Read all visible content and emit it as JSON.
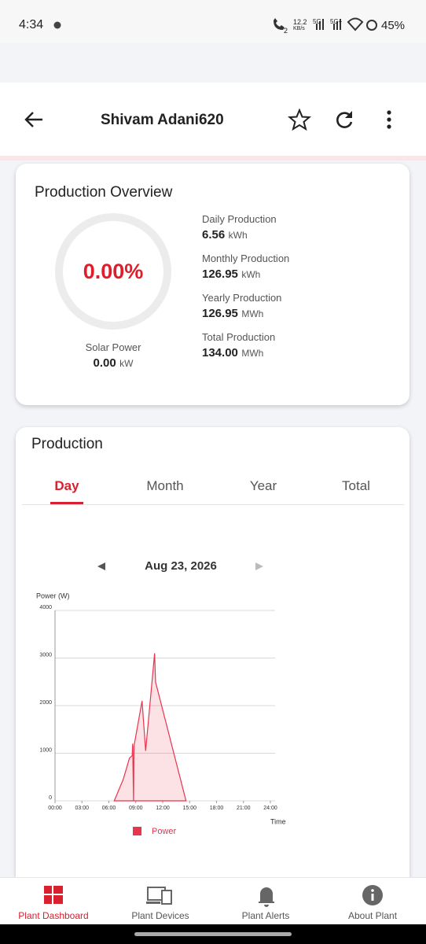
{
  "status_bar": {
    "time": "4:34",
    "call_count": "2",
    "speed": "12.2",
    "speed_unit": "KB/s",
    "network_1": "5G",
    "network_2": "5G+",
    "battery": "45%"
  },
  "header": {
    "title": "Shivam Adani620"
  },
  "overview": {
    "title": "Production Overview",
    "gauge_value": "0.00%",
    "solar_power_label": "Solar Power",
    "solar_power_value": "0.00",
    "solar_power_unit": "kW",
    "stats": [
      {
        "label": "Daily Production",
        "value": "6.56",
        "unit": "kWh"
      },
      {
        "label": "Monthly Production",
        "value": "126.95",
        "unit": "kWh"
      },
      {
        "label": "Yearly Production",
        "value": "126.95",
        "unit": "MWh"
      },
      {
        "label": "Total Production",
        "value": "134.00",
        "unit": "MWh"
      }
    ]
  },
  "production": {
    "title": "Production",
    "tabs": [
      "Day",
      "Month",
      "Year",
      "Total"
    ],
    "date": "Aug 23, 2026"
  },
  "chart_data": {
    "type": "area",
    "y_label": "Power (W)",
    "x_label": "Time",
    "x": [
      6.6,
      7.6,
      8.3,
      8.6,
      8.65,
      8.75,
      8.8,
      9.7,
      10.1,
      11.1,
      11.2,
      14.6
    ],
    "series": [
      {
        "name": "Power",
        "color": "#e8344e",
        "values": [
          0,
          450,
          900,
          950,
          1200,
          0,
          1150,
          2100,
          1050,
          3100,
          2500,
          0
        ]
      }
    ],
    "xlim": [
      0,
      24
    ],
    "xticks": [
      {
        "value": 0,
        "label": "00:00"
      },
      {
        "value": 3,
        "label": "03:00"
      },
      {
        "value": 6,
        "label": "06:00"
      },
      {
        "value": 9,
        "label": "09:00"
      },
      {
        "value": 12,
        "label": "12:00"
      },
      {
        "value": 15,
        "label": "15:00"
      },
      {
        "value": 18,
        "label": "18:00"
      },
      {
        "value": 21,
        "label": "21:00"
      },
      {
        "value": 24,
        "label": "24:00"
      }
    ],
    "ylim": [
      0,
      4000
    ],
    "yticks": [
      0,
      1000,
      2000,
      3000,
      4000
    ],
    "grid": true
  },
  "bottom_nav": [
    "Plant Dashboard",
    "Plant Devices",
    "Plant Alerts",
    "About Plant"
  ]
}
